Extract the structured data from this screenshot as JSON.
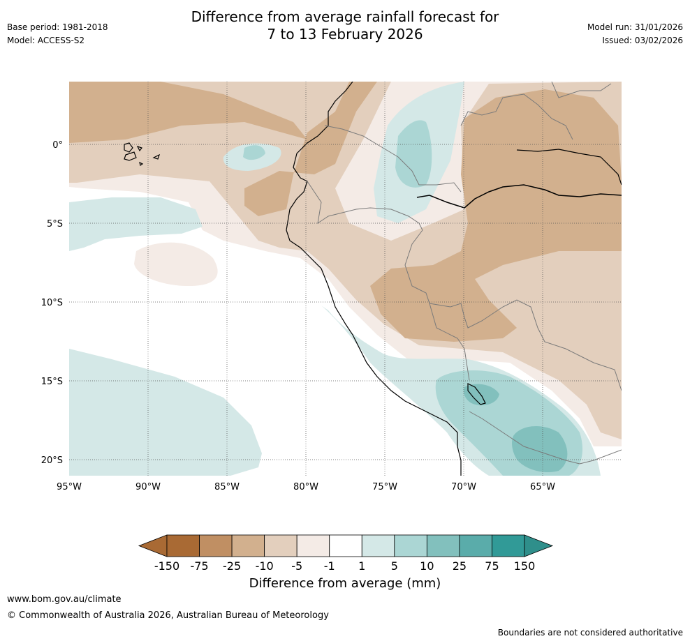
{
  "title": {
    "line1": "Difference from average rainfall forecast for",
    "line2": "7 to 13 February 2026"
  },
  "meta": {
    "base_period": "Base period: 1981-2018",
    "model": "Model: ACCESS-S2",
    "model_run": "Model run: 31/01/2026",
    "issued": "Issued: 03/02/2026"
  },
  "axes": {
    "lat_labels": [
      "0°",
      "5°S",
      "10°S",
      "15°S",
      "20°S"
    ],
    "lon_labels": [
      "95°W",
      "90°W",
      "85°W",
      "80°W",
      "75°W",
      "70°W",
      "65°W"
    ]
  },
  "legend": {
    "label": "Difference from average (mm)",
    "ticks": [
      "-150",
      "-75",
      "-25",
      "-10",
      "-5",
      "-1",
      "1",
      "5",
      "10",
      "25",
      "75",
      "150"
    ],
    "colors": {
      "below_min": "#a96a34",
      "bins": [
        "#a96a34",
        "#c08f63",
        "#d2b08e",
        "#e3cfbd",
        "#f4ebe6",
        "#ffffff",
        "#d4e8e7",
        "#abd6d4",
        "#82c0bd",
        "#5aacaa",
        "#319a97"
      ],
      "above_max": "#2f8f8b"
    }
  },
  "footer": {
    "website": "www.bom.gov.au/climate",
    "copyright": "© Commonwealth of Australia 2026, Australian Bureau of Meteorology",
    "disclaimer": "Boundaries are not considered authoritative"
  }
}
